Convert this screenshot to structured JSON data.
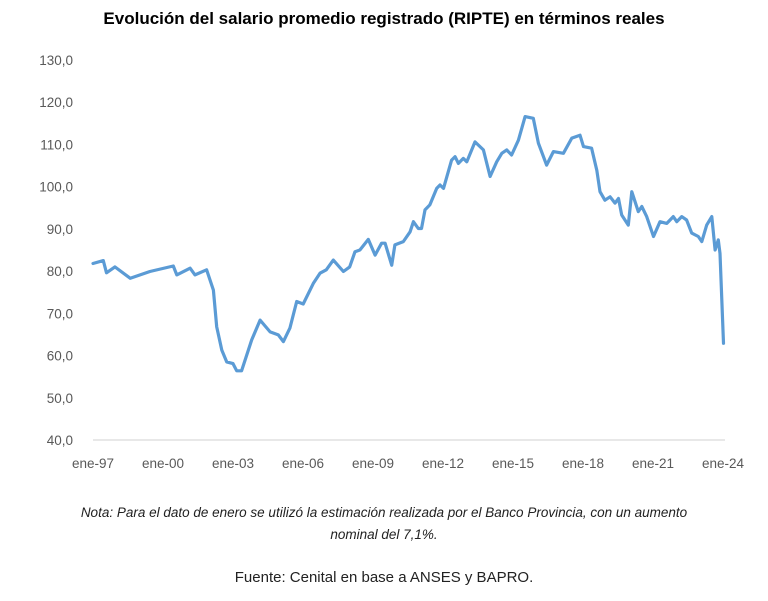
{
  "chart_data": {
    "type": "line",
    "title": "Evolución del salario promedio registrado (RIPTE) en términos reales",
    "xlabel": "",
    "ylabel": "",
    "ylim": [
      40,
      130
    ],
    "xlim": [
      1997,
      2024
    ],
    "yticks": [
      "40,0",
      "50,0",
      "60,0",
      "70,0",
      "80,0",
      "90,0",
      "100,0",
      "110,0",
      "120,0",
      "130,0"
    ],
    "xticks": [
      "ene-97",
      "ene-00",
      "ene-03",
      "ene-06",
      "ene-09",
      "ene-12",
      "ene-15",
      "ene-18",
      "ene-21",
      "ene-24"
    ],
    "grid": false,
    "line_color": "#5B9BD5",
    "series": [
      {
        "name": "RIPTE real",
        "x": [
          1997.0,
          1997.44,
          1997.58,
          1997.94,
          1998.6,
          1999.44,
          2000.44,
          2000.59,
          2001.16,
          2001.37,
          2001.87,
          2002.16,
          2002.3,
          2002.52,
          2002.73,
          2003.0,
          2003.16,
          2003.37,
          2003.8,
          2004.16,
          2004.59,
          2004.94,
          2005.16,
          2005.44,
          2005.73,
          2006.01,
          2006.44,
          2006.73,
          2007.0,
          2007.3,
          2007.73,
          2008.0,
          2008.23,
          2008.44,
          2008.8,
          2009.09,
          2009.37,
          2009.52,
          2009.8,
          2009.94,
          2010.3,
          2010.59,
          2010.73,
          2010.94,
          2011.08,
          2011.23,
          2011.44,
          2011.73,
          2011.87,
          2012.02,
          2012.37,
          2012.52,
          2012.66,
          2012.87,
          2013.02,
          2013.37,
          2013.73,
          2014.02,
          2014.3,
          2014.52,
          2014.73,
          2014.94,
          2015.23,
          2015.52,
          2015.87,
          2016.09,
          2016.44,
          2016.73,
          2017.16,
          2017.52,
          2017.87,
          2018.02,
          2018.37,
          2018.59,
          2018.73,
          2018.94,
          2019.16,
          2019.37,
          2019.52,
          2019.66,
          2019.94,
          2020.09,
          2020.37,
          2020.52,
          2020.73,
          2021.02,
          2021.3,
          2021.59,
          2021.87,
          2022.02,
          2022.23,
          2022.44,
          2022.66,
          2022.94,
          2023.09,
          2023.3,
          2023.52,
          2023.66,
          2023.8,
          2023.87,
          2024.02
        ],
        "values": [
          81.8,
          82.5,
          79.6,
          81.0,
          78.3,
          79.9,
          81.2,
          79.1,
          80.7,
          79.1,
          80.3,
          75.5,
          66.8,
          61.3,
          58.5,
          58.1,
          56.4,
          56.4,
          63.7,
          68.4,
          65.6,
          64.9,
          63.3,
          66.5,
          72.8,
          72.2,
          77.1,
          79.5,
          80.3,
          82.6,
          79.9,
          81.0,
          84.6,
          85.0,
          87.5,
          83.8,
          86.6,
          86.6,
          81.4,
          86.2,
          87.0,
          89.3,
          91.7,
          90.1,
          90.1,
          94.5,
          95.7,
          99.6,
          100.4,
          99.6,
          106.3,
          107.1,
          105.5,
          106.7,
          105.9,
          110.6,
          108.7,
          102.4,
          105.9,
          107.9,
          108.7,
          107.5,
          111.0,
          116.6,
          116.2,
          110.3,
          105.1,
          108.3,
          107.9,
          111.5,
          112.2,
          109.5,
          109.1,
          103.9,
          98.8,
          96.8,
          97.6,
          96.1,
          97.2,
          93.3,
          90.9,
          98.8,
          94.1,
          95.3,
          92.9,
          88.2,
          91.7,
          91.3,
          92.9,
          91.7,
          92.9,
          92.1,
          89.0,
          88.2,
          87.0,
          90.9,
          92.9,
          85.0,
          87.4,
          84.2,
          62.9
        ]
      }
    ]
  },
  "note_line1": "Nota: Para el dato de enero se utilizó la estimación realizada por el Banco Provincia, con un aumento",
  "note_line2": "nominal del 7,1%.",
  "source": "Fuente: Cenital en base a ANSES y BAPRO."
}
